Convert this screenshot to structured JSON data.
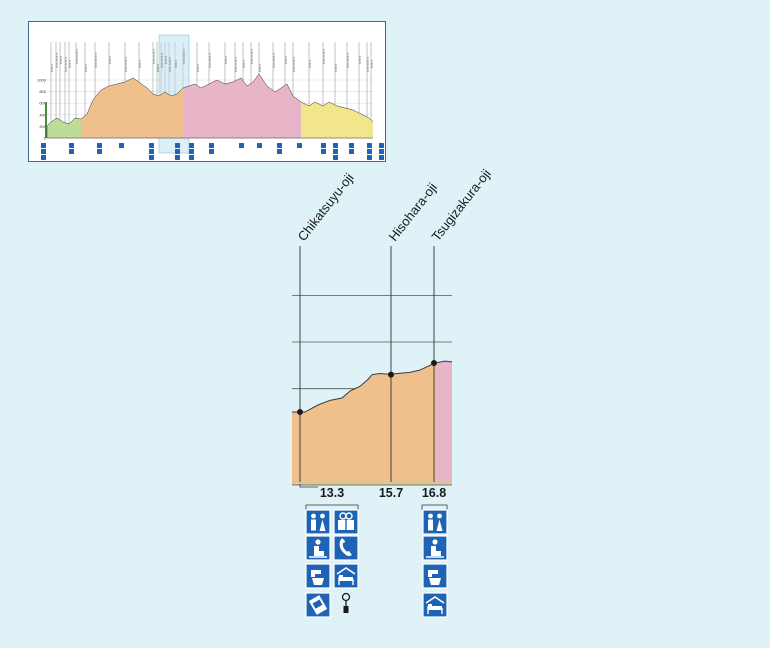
{
  "chart_data": {
    "type": "area",
    "title": "",
    "xlabel": "",
    "ylabel": "",
    "overview": {
      "elevation_ticks": [
        "1000",
        "800",
        "600",
        "400",
        "200",
        "0"
      ]
    },
    "stops": [
      {
        "name": "Chikatsuyu-oji",
        "km": "13.3",
        "elevation": 300,
        "facilities": [
          "toilet-icon",
          "souvenir-icon",
          "rest-area-icon",
          "phone-icon",
          "water-icon",
          "lodging-icon",
          "vending-icon",
          "bus-stop-icon"
        ]
      },
      {
        "name": "Hisohara-oji",
        "km": "15.7",
        "elevation": 460,
        "facilities": []
      },
      {
        "name": "Tsugizakura-oji",
        "km": "16.8",
        "elevation": 510,
        "facilities": [
          "toilet-icon",
          "rest-area-icon",
          "water-icon",
          "lodging-icon"
        ]
      }
    ],
    "grid": true,
    "segment_colors": {
      "section_a": "#f0c08c",
      "section_b": "#e8b4c8",
      "section_c": "#bedc96",
      "section_d": "#f2e68a"
    }
  }
}
